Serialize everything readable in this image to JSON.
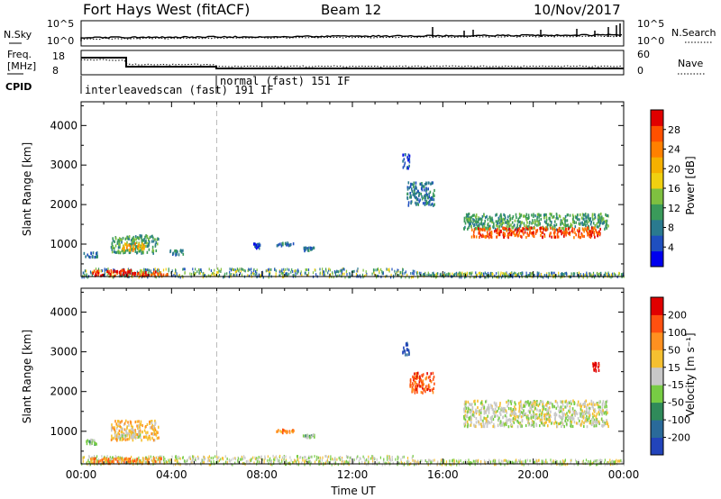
{
  "header": {
    "site": "Fort Hays West (fitACF)",
    "beam": "Beam 12",
    "date": "10/Nov/2017"
  },
  "summary_panels": {
    "nsky": {
      "label": "N.Sky",
      "ticks": [
        "10^5",
        "10^0"
      ]
    },
    "nsearch": {
      "label": "N.Search",
      "ticks": [
        "10^5",
        "10^0"
      ]
    },
    "freq": {
      "label_line1": "Freq.",
      "label_line2": "[MHz]",
      "ticks": [
        "18",
        "8"
      ]
    },
    "nave": {
      "label": "Nave",
      "ticks": [
        "60",
        "0"
      ]
    },
    "cpid": {
      "label": "CPID",
      "segments": [
        {
          "text": "interleavedscan (fast) 191 IF",
          "start": "00:00",
          "end": "06:00"
        },
        {
          "text": "normal (fast) 151 IF",
          "start": "06:00",
          "end": "24:00"
        }
      ]
    }
  },
  "chart_data": [
    {
      "type": "heatmap",
      "name": "power",
      "ylabel": "Slant Range [km]",
      "yticks": [
        1000,
        2000,
        3000,
        4000
      ],
      "ylim": [
        180,
        4600
      ],
      "xticks": [
        "00:00",
        "04:00",
        "08:00",
        "12:00",
        "16:00",
        "20:00",
        "00:00"
      ],
      "xlim_hours": [
        0,
        24
      ],
      "colorbar": {
        "label": "Power [dB]",
        "ticks": [
          "28",
          "24",
          "20",
          "16",
          "12",
          "8",
          "4"
        ],
        "colors": [
          "#0000ee",
          "#1f4fbf",
          "#2a7a8f",
          "#3a9a5a",
          "#7fc040",
          "#f0d010",
          "#f5b000",
          "#ff8000",
          "#ff5000",
          "#e00000"
        ]
      },
      "regions": [
        {
          "hours": [
            0.1,
            0.7
          ],
          "range_km": [
            700,
            830
          ],
          "level": 2
        },
        {
          "hours": [
            1.3,
            3.4
          ],
          "range_km": [
            800,
            1250
          ],
          "level": 3
        },
        {
          "hours": [
            1.8,
            2.8
          ],
          "range_km": [
            850,
            1050
          ],
          "level": 6
        },
        {
          "hours": [
            0.4,
            2.4
          ],
          "range_km": [
            230,
            380
          ],
          "level": 9
        },
        {
          "hours": [
            2.4,
            3.8
          ],
          "range_km": [
            220,
            330
          ],
          "level": 8
        },
        {
          "hours": [
            3.9,
            4.5
          ],
          "range_km": [
            760,
            880
          ],
          "level": 2
        },
        {
          "hours": [
            7.6,
            7.9
          ],
          "range_km": [
            920,
            1050
          ],
          "level": 1
        },
        {
          "hours": [
            8.6,
            9.4
          ],
          "range_km": [
            980,
            1080
          ],
          "level": 2
        },
        {
          "hours": [
            9.8,
            10.3
          ],
          "range_km": [
            860,
            950
          ],
          "level": 2
        },
        {
          "hours": [
            14.2,
            14.5
          ],
          "range_km": [
            2950,
            3300
          ],
          "level": 1
        },
        {
          "hours": [
            14.4,
            15.6
          ],
          "range_km": [
            2000,
            2600
          ],
          "level": 2
        },
        {
          "hours": [
            16.9,
            23.3
          ],
          "range_km": [
            1400,
            1800
          ],
          "level": 3
        },
        {
          "hours": [
            17.2,
            23.0
          ],
          "range_km": [
            1200,
            1450
          ],
          "level": 8
        }
      ]
    },
    {
      "type": "heatmap",
      "name": "velocity",
      "ylabel": "Slant Range [km]",
      "yticks": [
        1000,
        2000,
        3000,
        4000
      ],
      "ylim": [
        180,
        4600
      ],
      "xticks": [
        "00:00",
        "04:00",
        "08:00",
        "12:00",
        "16:00",
        "20:00",
        "00:00"
      ],
      "xlim_hours": [
        0,
        24
      ],
      "xlabel": "Time UT",
      "colorbar": {
        "label": "Velocity [m s⁻¹]",
        "ticks": [
          "200",
          "100",
          "50",
          "15",
          "-15",
          "-50",
          "-100",
          "-200"
        ],
        "colors": [
          "#2244bb",
          "#2a6a9a",
          "#2f8a5a",
          "#77cc44",
          "#c8c8c8",
          "#f5c030",
          "#ff9020",
          "#ff5010",
          "#e00000"
        ]
      },
      "regions": [
        {
          "hours": [
            0.1,
            0.7
          ],
          "range_km": [
            700,
            820
          ],
          "level": 3
        },
        {
          "hours": [
            1.3,
            3.4
          ],
          "range_km": [
            800,
            1300
          ],
          "level": 5
        },
        {
          "hours": [
            1.6,
            2.6
          ],
          "range_km": [
            850,
            1000
          ],
          "level": 4
        },
        {
          "hours": [
            0.4,
            3.8
          ],
          "range_km": [
            220,
            360
          ],
          "level": 6
        },
        {
          "hours": [
            8.6,
            9.4
          ],
          "range_km": [
            990,
            1070
          ],
          "level": 6
        },
        {
          "hours": [
            9.8,
            10.3
          ],
          "range_km": [
            870,
            950
          ],
          "level": 3
        },
        {
          "hours": [
            14.2,
            14.5
          ],
          "range_km": [
            2950,
            3250
          ],
          "level": 0
        },
        {
          "hours": [
            14.5,
            15.6
          ],
          "range_km": [
            2000,
            2500
          ],
          "level": 7
        },
        {
          "hours": [
            16.9,
            23.3
          ],
          "range_km": [
            1150,
            1800
          ],
          "level": 4
        },
        {
          "hours": [
            22.6,
            22.9
          ],
          "range_km": [
            2550,
            2750
          ],
          "level": 8
        }
      ]
    }
  ]
}
